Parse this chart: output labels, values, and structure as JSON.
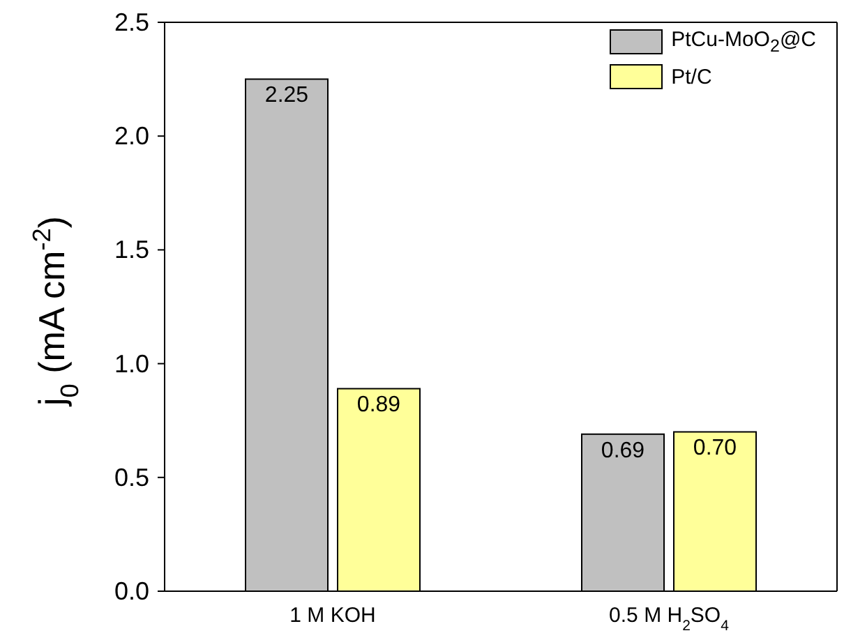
{
  "chart_data": {
    "type": "bar",
    "ylabel": "j$_{0}$ (mA cm$^{-2}$)",
    "categories": [
      "1 M KOH",
      "0.5 M H$_{2}$SO$_{4}$"
    ],
    "series": [
      {
        "name": "PtCu-MoO$_{2}$@C",
        "color": "#c0c0c0",
        "values": [
          2.25,
          0.69
        ],
        "value_labels": [
          "2.25",
          "0.69"
        ]
      },
      {
        "name": "Pt/C",
        "color": "#ffff99",
        "values": [
          0.89,
          0.7
        ],
        "value_labels": [
          "0.89",
          "0.70"
        ]
      }
    ],
    "ylim": [
      0,
      2.5
    ],
    "yticks": [
      {
        "value": 0,
        "label": "0.0"
      },
      {
        "value": 0.5,
        "label": "0.5"
      },
      {
        "value": 1,
        "label": "1.0"
      },
      {
        "value": 1.5,
        "label": "1.5"
      },
      {
        "value": 2,
        "label": "2.0"
      },
      {
        "value": 2.5,
        "label": "2.5"
      }
    ],
    "grid": false,
    "legend": "top right"
  }
}
